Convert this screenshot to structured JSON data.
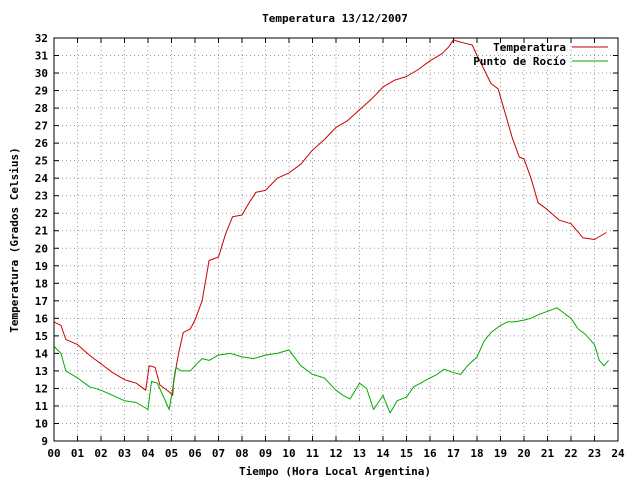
{
  "chart_data": {
    "type": "line",
    "title": "Temperatura 13/12/2007",
    "xlabel": "Tiempo (Hora Local Argentina)",
    "ylabel": "Temperatura (Grados Celsius)",
    "xlim": [
      0,
      24
    ],
    "ylim": [
      9,
      32
    ],
    "xticks": [
      "00",
      "01",
      "02",
      "03",
      "04",
      "05",
      "06",
      "07",
      "08",
      "09",
      "10",
      "11",
      "12",
      "13",
      "14",
      "15",
      "16",
      "17",
      "18",
      "19",
      "20",
      "21",
      "22",
      "23",
      "24"
    ],
    "yticks": [
      9,
      10,
      11,
      12,
      13,
      14,
      15,
      16,
      17,
      18,
      19,
      20,
      21,
      22,
      23,
      24,
      25,
      26,
      27,
      28,
      29,
      30,
      31,
      32
    ],
    "grid": true,
    "legend": "top-right",
    "series": [
      {
        "name": "Temperatura",
        "color": "#cc0000",
        "x": [
          0,
          0.3,
          0.5,
          1,
          1.5,
          2,
          2.5,
          3,
          3.5,
          3.9,
          4.05,
          4.3,
          4.5,
          4.9,
          5.05,
          5.1,
          5.3,
          5.5,
          5.8,
          6.0,
          6.3,
          6.6,
          7.0,
          7.3,
          7.6,
          8.0,
          8.3,
          8.6,
          9.0,
          9.5,
          10.0,
          10.5,
          11.0,
          11.5,
          12.0,
          12.5,
          13.0,
          13.5,
          14.0,
          14.5,
          15.0,
          15.5,
          16.0,
          16.5,
          16.8,
          17.0,
          17.2,
          17.5,
          17.8,
          18.0,
          18.3,
          18.6,
          18.9,
          19.2,
          19.5,
          19.8,
          20.0,
          20.3,
          20.6,
          21.0,
          21.5,
          22.0,
          22.5,
          23.0,
          23.5
        ],
        "values": [
          15.8,
          15.6,
          14.8,
          14.5,
          13.9,
          13.4,
          12.9,
          12.5,
          12.3,
          11.9,
          13.3,
          13.2,
          12.2,
          11.8,
          11.6,
          12.5,
          14.0,
          15.2,
          15.4,
          15.9,
          17.0,
          19.3,
          19.5,
          20.8,
          21.8,
          21.9,
          22.6,
          23.2,
          23.3,
          24.0,
          24.3,
          24.8,
          25.6,
          26.2,
          26.9,
          27.3,
          27.9,
          28.5,
          29.2,
          29.6,
          29.8,
          30.2,
          30.7,
          31.1,
          31.5,
          31.9,
          31.8,
          31.7,
          31.6,
          31.0,
          30.2,
          29.4,
          29.1,
          27.7,
          26.3,
          25.2,
          25.1,
          24.0,
          22.6,
          22.2,
          21.6,
          21.4,
          20.6,
          20.5,
          20.9
        ]
      },
      {
        "name": "Punto de Rocío",
        "color": "#00aa00",
        "x": [
          0,
          0.3,
          0.5,
          1,
          1.5,
          2,
          2.5,
          3,
          3.5,
          4.0,
          4.15,
          4.4,
          4.9,
          5.05,
          5.2,
          5.4,
          5.8,
          6.0,
          6.3,
          6.6,
          7.0,
          7.5,
          8.0,
          8.5,
          9.0,
          9.5,
          10.0,
          10.5,
          11.0,
          11.5,
          12.0,
          12.3,
          12.6,
          13.0,
          13.3,
          13.6,
          14.0,
          14.3,
          14.6,
          15.0,
          15.3,
          15.6,
          16.0,
          16.3,
          16.6,
          17.0,
          17.3,
          17.6,
          18.0,
          18.3,
          18.6,
          19.0,
          19.3,
          19.6,
          20.0,
          20.3,
          20.6,
          21.0,
          21.4,
          21.7,
          22.0,
          22.3,
          22.6,
          23.0,
          23.2,
          23.4,
          23.6
        ],
        "values": [
          14.4,
          14.0,
          13.0,
          12.6,
          12.1,
          11.9,
          11.6,
          11.3,
          11.2,
          10.8,
          12.4,
          12.3,
          10.8,
          12.0,
          13.2,
          13.0,
          13.0,
          13.3,
          13.7,
          13.6,
          13.9,
          14.0,
          13.8,
          13.7,
          13.9,
          14.0,
          14.2,
          13.3,
          12.8,
          12.6,
          11.9,
          11.6,
          11.4,
          12.3,
          12.0,
          10.8,
          11.6,
          10.6,
          11.3,
          11.5,
          12.1,
          12.3,
          12.6,
          12.8,
          13.1,
          12.9,
          12.8,
          13.3,
          13.8,
          14.7,
          15.2,
          15.6,
          15.8,
          15.8,
          15.9,
          16.0,
          16.2,
          16.4,
          16.6,
          16.3,
          16.0,
          15.4,
          15.1,
          14.5,
          13.6,
          13.3,
          13.6
        ]
      }
    ]
  }
}
